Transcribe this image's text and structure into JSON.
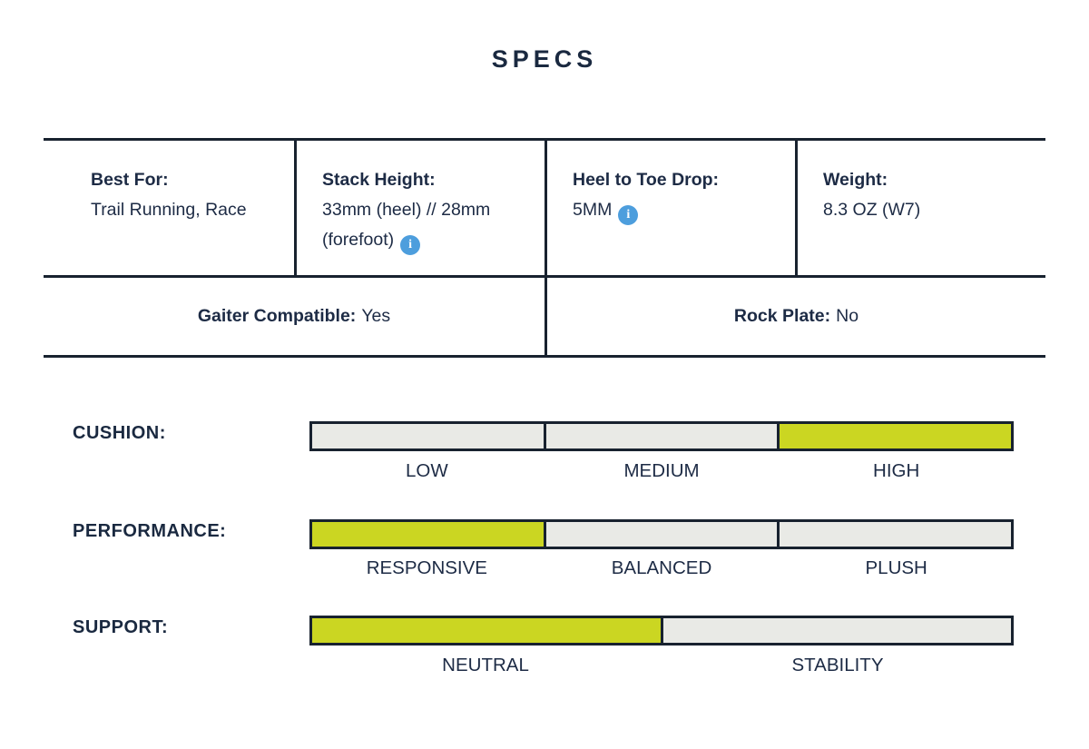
{
  "title": "SPECS",
  "colors": {
    "navy_text": "#1d2b45",
    "navy_border": "#18222f",
    "selected_green": "#cbd622",
    "unselected_gray": "#e9eae6",
    "info_blue": "#4d9edd"
  },
  "info_icon_glyph": "i",
  "spec_table": {
    "row1": [
      {
        "label": "Best For:",
        "value": "Trail Running, Race"
      },
      {
        "label": "Stack Height:",
        "value": "33mm (heel) // 28mm (forefoot)",
        "has_info": true
      },
      {
        "label": "Heel to Toe Drop:",
        "value": "5MM",
        "has_info": true
      },
      {
        "label": "Weight:",
        "value": "8.3 OZ (W7)"
      }
    ],
    "row2": [
      {
        "label": "Gaiter Compatible:",
        "value": "Yes"
      },
      {
        "label": "Rock Plate:",
        "value": "No"
      }
    ]
  },
  "sliders": [
    {
      "name": "CUSHION:",
      "options": [
        "LOW",
        "MEDIUM",
        "HIGH"
      ],
      "selected": "HIGH",
      "selected_index": 2
    },
    {
      "name": "PERFORMANCE:",
      "options": [
        "RESPONSIVE",
        "BALANCED",
        "PLUSH"
      ],
      "selected": "RESPONSIVE",
      "selected_index": 0
    },
    {
      "name": "SUPPORT:",
      "options": [
        "NEUTRAL",
        "STABILITY"
      ],
      "selected": "NEUTRAL",
      "selected_index": 0
    }
  ]
}
